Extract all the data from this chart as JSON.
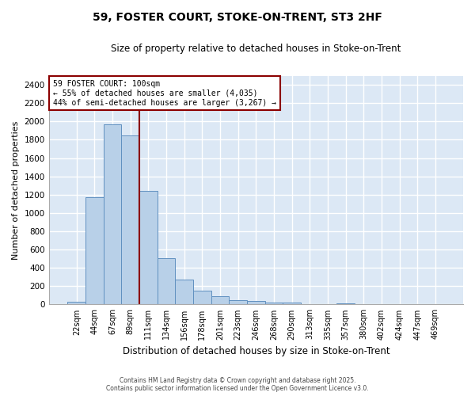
{
  "title": "59, FOSTER COURT, STOKE-ON-TRENT, ST3 2HF",
  "subtitle": "Size of property relative to detached houses in Stoke-on-Trent",
  "xlabel": "Distribution of detached houses by size in Stoke-on-Trent",
  "ylabel": "Number of detached properties",
  "categories": [
    "22sqm",
    "44sqm",
    "67sqm",
    "89sqm",
    "111sqm",
    "134sqm",
    "156sqm",
    "178sqm",
    "201sqm",
    "223sqm",
    "246sqm",
    "268sqm",
    "290sqm",
    "313sqm",
    "335sqm",
    "357sqm",
    "380sqm",
    "402sqm",
    "424sqm",
    "447sqm",
    "469sqm"
  ],
  "values": [
    30,
    1170,
    1970,
    1850,
    1240,
    510,
    270,
    155,
    90,
    45,
    38,
    20,
    20,
    8,
    8,
    12,
    2,
    2,
    2,
    2,
    2
  ],
  "bar_color": "#b8d0e8",
  "bar_edge_color": "#6090c0",
  "ylim": [
    0,
    2500
  ],
  "yticks": [
    0,
    200,
    400,
    600,
    800,
    1000,
    1200,
    1400,
    1600,
    1800,
    2000,
    2200,
    2400
  ],
  "annotation_text_line1": "59 FOSTER COURT: 100sqm",
  "annotation_text_line2": "← 55% of detached houses are smaller (4,035)",
  "annotation_text_line3": "44% of semi-detached houses are larger (3,267) →",
  "vline_x_index": 3.5,
  "plot_bg_color": "#dce8f5",
  "fig_bg_color": "#ffffff",
  "grid_color": "#ffffff",
  "footer_line1": "Contains HM Land Registry data © Crown copyright and database right 2025.",
  "footer_line2": "Contains public sector information licensed under the Open Government Licence v3.0."
}
